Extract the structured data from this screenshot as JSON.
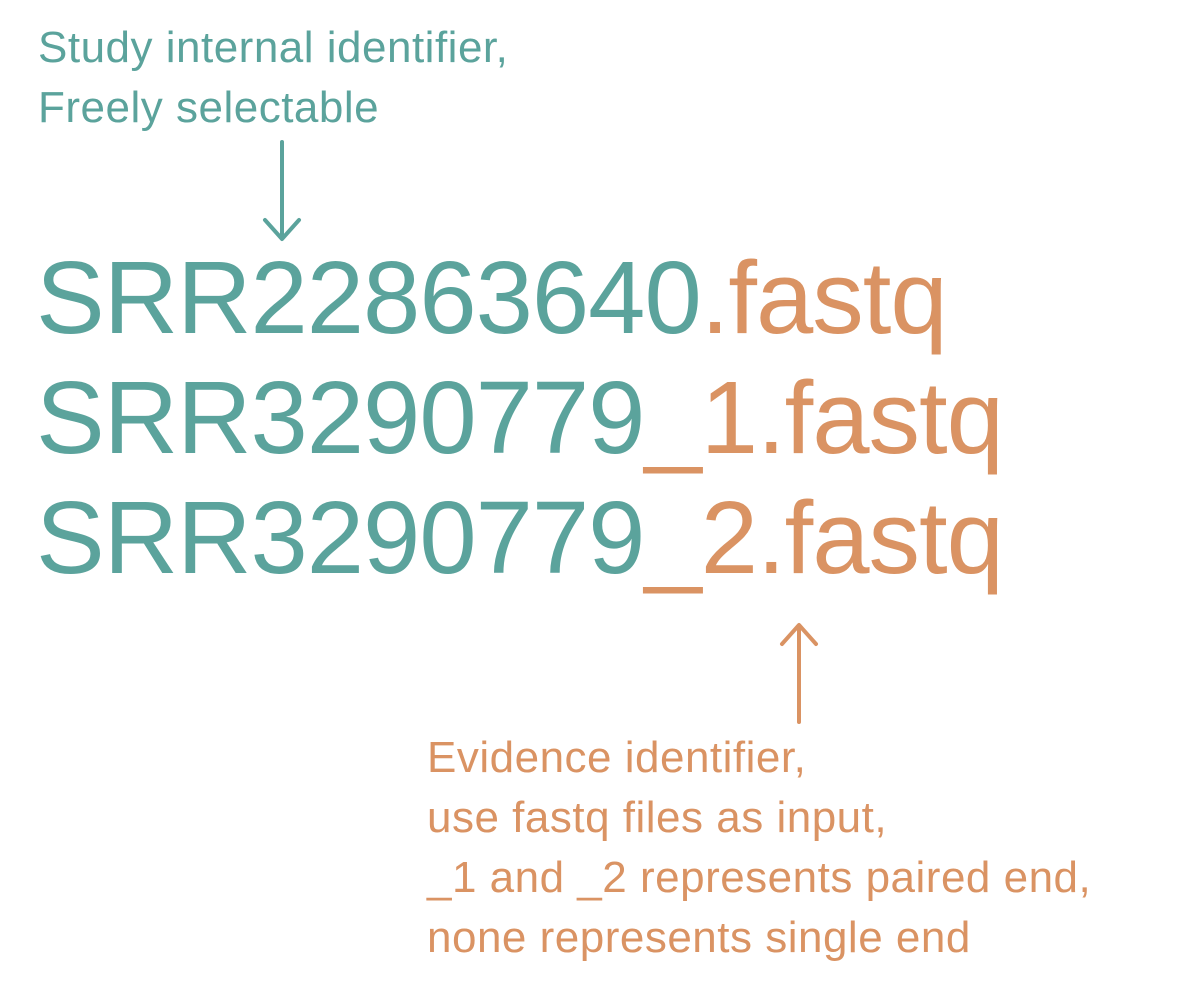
{
  "colors": {
    "teal": "#5ba39c",
    "orange": "#da9363"
  },
  "study_note": {
    "line1": "Study internal identifier,",
    "line2": "Freely selectable"
  },
  "filenames": [
    {
      "id": "SRR22863640",
      "suffix": ".fastq"
    },
    {
      "id": "SRR3290779",
      "suffix": "_1.fastq"
    },
    {
      "id": "SRR3290779",
      "suffix": "_2.fastq"
    }
  ],
  "evidence_note": {
    "line1": "Evidence identifier,",
    "line2": "use fastq files as input,",
    "line3": "_1 and _2 represents paired end,",
    "line4": "none represents single end"
  }
}
